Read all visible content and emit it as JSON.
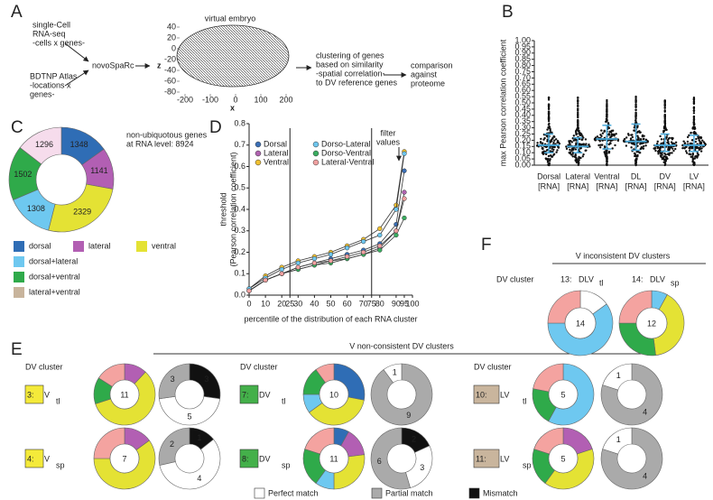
{
  "panel_a": {
    "label": "A",
    "input1": [
      "single-Cell",
      "RNA-seq",
      "-cells x genes-"
    ],
    "input2": [
      "BDTNP Atlas",
      "-locations x",
      "genes-"
    ],
    "method": "novoSpaRc",
    "embryo_title": "virtual embryo",
    "z_label": "z",
    "x_label": "x",
    "z_ticks": [
      40,
      20,
      0,
      -20,
      -40,
      -60,
      -80
    ],
    "x_ticks": [
      -200,
      -100,
      0,
      100,
      200
    ],
    "step2": [
      "clustering of genes",
      "based on similarity",
      "-spatial correlation-",
      "to DV reference genes"
    ],
    "step3": [
      "comparison",
      "against",
      "proteome"
    ]
  },
  "panel_b": {
    "label": "B",
    "y_label": "max Pearson correlation coefficient",
    "ylim": [
      0,
      1
    ],
    "yticks": [
      {
        "value": 0,
        "label": "0.00"
      },
      {
        "value": 0.05,
        "label": "0.05"
      },
      {
        "value": 0.1,
        "label": "0.10"
      },
      {
        "value": 0.15,
        "label": "0.15"
      },
      {
        "value": 0.2,
        "label": "0.20"
      },
      {
        "value": 0.25,
        "label": "0.25"
      },
      {
        "value": 0.3,
        "label": "0.30"
      },
      {
        "value": 0.35,
        "label": "0.35"
      },
      {
        "value": 0.4,
        "label": "0.40"
      },
      {
        "value": 0.45,
        "label": "0.45"
      },
      {
        "value": 0.5,
        "label": "0.50"
      },
      {
        "value": 0.55,
        "label": "0.55"
      },
      {
        "value": 0.6,
        "label": "0.60"
      },
      {
        "value": 0.65,
        "label": "0.65"
      },
      {
        "value": 0.7,
        "label": "0.70"
      },
      {
        "value": 0.75,
        "label": "0.75"
      },
      {
        "value": 0.8,
        "label": "0.80"
      },
      {
        "value": 0.85,
        "label": "0.85"
      },
      {
        "value": 0.9,
        "label": "0.90"
      },
      {
        "value": 0.95,
        "label": "0.95"
      },
      {
        "value": 1,
        "label": "1.00"
      }
    ],
    "categories": [
      [
        "Dorsal",
        "[RNA]"
      ],
      [
        "Lateral",
        "[RNA]"
      ],
      [
        "Ventral",
        "[RNA]"
      ],
      [
        "DL",
        "[RNA]"
      ],
      [
        "DV",
        "[RNA]"
      ],
      [
        "LV",
        "[RNA]"
      ]
    ],
    "median": [
      0.16,
      0.15,
      0.21,
      0.19,
      0.16,
      0.16
    ],
    "q1": [
      0.1,
      0.1,
      0.13,
      0.12,
      0.11,
      0.11
    ],
    "q3": [
      0.25,
      0.22,
      0.32,
      0.33,
      0.25,
      0.24
    ],
    "color": "#4aa8d8"
  },
  "panel_c": {
    "label": "C",
    "note": [
      "non-ubiquotous genes",
      "at RNA level: 8924"
    ],
    "segments": [
      {
        "name": "dorsal",
        "value": 1348,
        "color": "#2f6db5",
        "legend_color": "#2f6db5"
      },
      {
        "name": "lateral",
        "value": 1141,
        "color": "#b25fb3",
        "legend_color": "#b25fb3"
      },
      {
        "name": "ventral",
        "value": 2329,
        "color": "#e4e234",
        "legend_color": "#e4e234"
      },
      {
        "name": "dorsal+lateral",
        "value": 1308,
        "color": "#6ec8f0",
        "legend_color": "#6ec8f0"
      },
      {
        "name": "dorsal+ventral",
        "value": 1502,
        "color": "#2faa4a",
        "legend_color": "#2faa4a"
      },
      {
        "name": "lateral+ventral",
        "value": 1296,
        "color": "#f6dcec",
        "legend_color": "#c8b49c"
      }
    ]
  },
  "panel_d": {
    "label": "D",
    "y_label": [
      "threshold",
      "(Pearson correlation coefficient)"
    ],
    "x_label": "percentile of the distribution of each RNA cluster",
    "annotation": [
      "filter",
      "values"
    ],
    "xlim": [
      0,
      100
    ],
    "ylim": [
      0,
      0.8
    ],
    "vlines": [
      25,
      75
    ],
    "xticks": [
      0,
      10,
      20,
      25,
      30,
      40,
      50,
      60,
      70,
      75,
      80,
      90,
      95,
      100
    ],
    "yticks": [
      {
        "value": 0,
        "label": "0.0"
      },
      {
        "value": 0.1,
        "label": "0.1"
      },
      {
        "value": 0.2,
        "label": "0.2"
      },
      {
        "value": 0.3,
        "label": "0.3"
      },
      {
        "value": 0.4,
        "label": "0.4"
      },
      {
        "value": 0.5,
        "label": "0.5"
      },
      {
        "value": 0.6,
        "label": "0.6"
      },
      {
        "value": 0.7,
        "label": "0.7"
      },
      {
        "value": 0.8,
        "label": "0.8"
      }
    ],
    "x": [
      0,
      10,
      20,
      30,
      40,
      50,
      60,
      70,
      80,
      90,
      95
    ],
    "series": [
      {
        "name": "Dorsal",
        "color": "#3b6fb6",
        "values": [
          0.02,
          0.07,
          0.1,
          0.13,
          0.15,
          0.17,
          0.19,
          0.21,
          0.24,
          0.33,
          0.58
        ]
      },
      {
        "name": "Lateral",
        "color": "#b063b0",
        "values": [
          0.02,
          0.07,
          0.1,
          0.12,
          0.14,
          0.16,
          0.17,
          0.19,
          0.22,
          0.3,
          0.48
        ]
      },
      {
        "name": "Ventral",
        "color": "#f0c030",
        "values": [
          0.03,
          0.09,
          0.13,
          0.16,
          0.18,
          0.2,
          0.23,
          0.26,
          0.31,
          0.42,
          0.67
        ]
      },
      {
        "name": "Dorso-Lateral",
        "color": "#6ec6ee",
        "values": [
          0.03,
          0.08,
          0.12,
          0.15,
          0.17,
          0.19,
          0.22,
          0.25,
          0.28,
          0.4,
          0.66
        ]
      },
      {
        "name": "Dorso-Ventral",
        "color": "#3aad60",
        "values": [
          0.02,
          0.07,
          0.1,
          0.12,
          0.14,
          0.15,
          0.17,
          0.19,
          0.21,
          0.28,
          0.36
        ]
      },
      {
        "name": "Lateral-Ventral",
        "color": "#f0a0a0",
        "values": [
          0.02,
          0.07,
          0.1,
          0.13,
          0.15,
          0.16,
          0.18,
          0.2,
          0.23,
          0.3,
          0.45
        ]
      }
    ]
  },
  "panel_e": {
    "label": "E",
    "title": "V non-consistent DV clusters",
    "legend": [
      {
        "name": "Perfect match",
        "color": "#ffffff"
      },
      {
        "name": "Partial match",
        "color": "#aaaaaa"
      },
      {
        "name": "Mismatch",
        "color": "#111111"
      }
    ],
    "groups": [
      {
        "label": "DV cluster",
        "clusters": [
          {
            "id": "3:",
            "name": "V",
            "sub": "tl",
            "tag_color": "#f4ea3a",
            "total": 11,
            "composition": [
              {
                "value": 12,
                "color": "#b25fb3"
              },
              {
                "value": 58,
                "color": "#e4e234"
              },
              {
                "value": 14,
                "color": "#2faa4a"
              },
              {
                "value": 16,
                "color": "#f4a3a0"
              }
            ],
            "match": [
              {
                "value": 3,
                "color": "#111111"
              },
              {
                "value": 5,
                "color": "#ffffff"
              },
              {
                "value": 3,
                "color": "#aaaaaa"
              }
            ]
          },
          {
            "id": "4:",
            "name": "V",
            "sub": "sp",
            "tag_color": "#f4ea3a",
            "total": 7,
            "composition": [
              {
                "value": 15,
                "color": "#b25fb3"
              },
              {
                "value": 60,
                "color": "#e4e234"
              },
              {
                "value": 25,
                "color": "#f4a3a0"
              }
            ],
            "match": [
              {
                "value": 1,
                "color": "#111111"
              },
              {
                "value": 4,
                "color": "#ffffff"
              },
              {
                "value": 2,
                "color": "#aaaaaa"
              }
            ]
          }
        ]
      },
      {
        "label": "DV cluster",
        "clusters": [
          {
            "id": "7:",
            "name": "DV",
            "sub": "tl",
            "tag_color": "#44b04a",
            "total": 10,
            "composition": [
              {
                "value": 28,
                "color": "#2f6db5"
              },
              {
                "value": 37,
                "color": "#e4e234"
              },
              {
                "value": 10,
                "color": "#6ec8f0"
              },
              {
                "value": 15,
                "color": "#2faa4a"
              },
              {
                "value": 10,
                "color": "#f4a3a0"
              }
            ],
            "match": [
              {
                "value": 9,
                "color": "#aaaaaa"
              },
              {
                "value": 1,
                "color": "#ffffff"
              }
            ]
          },
          {
            "id": "8:",
            "name": "DV",
            "sub": "sp",
            "tag_color": "#44b04a",
            "total": 11,
            "composition": [
              {
                "value": 8,
                "color": "#2f6db5"
              },
              {
                "value": 15,
                "color": "#b25fb3"
              },
              {
                "value": 27,
                "color": "#e4e234"
              },
              {
                "value": 10,
                "color": "#6ec8f0"
              },
              {
                "value": 20,
                "color": "#2faa4a"
              },
              {
                "value": 20,
                "color": "#f4a3a0"
              }
            ],
            "match": [
              {
                "value": 2,
                "color": "#111111"
              },
              {
                "value": 3,
                "color": "#ffffff"
              },
              {
                "value": 6,
                "color": "#aaaaaa"
              }
            ]
          }
        ]
      },
      {
        "label": "DV cluster",
        "clusters": [
          {
            "id": "10:",
            "name": "LV",
            "sub": "tl",
            "tag_color": "#c9b59d",
            "total": 5,
            "composition": [
              {
                "value": 58,
                "color": "#6ec8f0"
              },
              {
                "value": 20,
                "color": "#2faa4a"
              },
              {
                "value": 22,
                "color": "#f4a3a0"
              }
            ],
            "match": [
              {
                "value": 4,
                "color": "#aaaaaa"
              },
              {
                "value": 1,
                "color": "#ffffff"
              }
            ]
          },
          {
            "id": "11:",
            "name": "LV",
            "sub": "sp",
            "tag_color": "#c9b59d",
            "total": 5,
            "composition": [
              {
                "value": 20,
                "color": "#b25fb3"
              },
              {
                "value": 40,
                "color": "#e4e234"
              },
              {
                "value": 20,
                "color": "#2faa4a"
              },
              {
                "value": 20,
                "color": "#f4a3a0"
              }
            ],
            "match": [
              {
                "value": 4,
                "color": "#aaaaaa"
              },
              {
                "value": 1,
                "color": "#ffffff"
              }
            ]
          }
        ]
      }
    ]
  },
  "panel_f": {
    "label": "F",
    "title": "V inconsistent DV clusters",
    "group_label": "DV cluster",
    "clusters": [
      {
        "id": "13:",
        "name": "DLV",
        "sub": "tl",
        "total": 14,
        "composition": [
          {
            "value": 15,
            "color": "#ffffff"
          },
          {
            "value": 60,
            "color": "#6ec8f0"
          },
          {
            "value": 25,
            "color": "#f4a3a0"
          }
        ]
      },
      {
        "id": "14:",
        "name": "DLV",
        "sub": "sp",
        "total": 12,
        "composition": [
          {
            "value": 8,
            "color": "#6ec8f0"
          },
          {
            "value": 40,
            "color": "#e4e234"
          },
          {
            "value": 27,
            "color": "#2faa4a"
          },
          {
            "value": 25,
            "color": "#f4a3a0"
          }
        ]
      }
    ]
  }
}
